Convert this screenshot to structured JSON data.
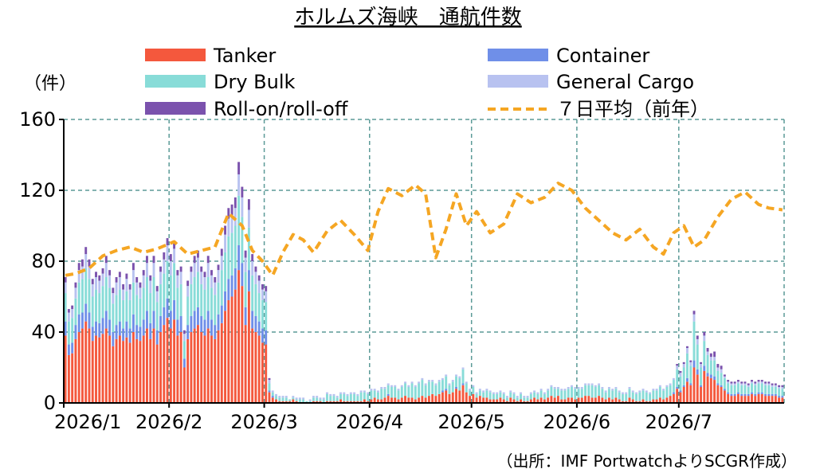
{
  "chart_data": {
    "type": "bar",
    "stacked": true,
    "title": "ホルムズ海峡　通航件数",
    "ylabel": "（件）",
    "ylim": [
      0,
      160
    ],
    "yticks": [
      0,
      40,
      80,
      120,
      160
    ],
    "xticks": [
      "2026/1",
      "2026/2",
      "2026/3",
      "2026/4",
      "2026/5",
      "2026/6",
      "2026/7"
    ],
    "grid": true,
    "legend_position": "top",
    "source": "（出所：IMF PortwatchよりSCGR作成）",
    "x_start": "2026-01-01",
    "x_end": "2026-07-31",
    "series": [
      {
        "name": "Tanker",
        "color": "#f4583d",
        "values": [
          38,
          27,
          28,
          36,
          40,
          42,
          46,
          42,
          35,
          38,
          37,
          39,
          42,
          38,
          32,
          36,
          38,
          35,
          37,
          34,
          40,
          36,
          35,
          38,
          42,
          36,
          42,
          33,
          40,
          44,
          48,
          42,
          47,
          38,
          40,
          20,
          36,
          40,
          42,
          44,
          40,
          38,
          42,
          38,
          36,
          41,
          45,
          52,
          58,
          60,
          64,
          75,
          66,
          44,
          63,
          42,
          40,
          38,
          34,
          33,
          6,
          3,
          2,
          1,
          1,
          1,
          1,
          2,
          1,
          0,
          0,
          0,
          0,
          1,
          1,
          1,
          0,
          1,
          1,
          1,
          1,
          2,
          1,
          1,
          1,
          1,
          1,
          1,
          2,
          1,
          2,
          3,
          2,
          2,
          3,
          4,
          3,
          3,
          2,
          3,
          4,
          3,
          3,
          2,
          3,
          4,
          3,
          4,
          5,
          4,
          5,
          6,
          7,
          5,
          6,
          8,
          7,
          10,
          6,
          4,
          5,
          3,
          4,
          3,
          3,
          2,
          2,
          2,
          3,
          2,
          1,
          3,
          2,
          1,
          2,
          1,
          1,
          2,
          3,
          2,
          3,
          2,
          3,
          4,
          3,
          4,
          2,
          2,
          3,
          3,
          2,
          3,
          3,
          4,
          4,
          3,
          3,
          4,
          3,
          2,
          3,
          2,
          3,
          2,
          1,
          1,
          3,
          2,
          1,
          1,
          2,
          1,
          1,
          2,
          2,
          3,
          2,
          3,
          4,
          5,
          8,
          6,
          9,
          12,
          10,
          20,
          16,
          9,
          18,
          15,
          14,
          13,
          10,
          9,
          7,
          5,
          4,
          4,
          5,
          4,
          4,
          4,
          5,
          4,
          5,
          5,
          4,
          4,
          4,
          4,
          3,
          3
        ]
      },
      {
        "name": "Container",
        "color": "#6f8fe8",
        "values": [
          8,
          6,
          6,
          8,
          10,
          9,
          10,
          9,
          8,
          8,
          8,
          9,
          10,
          9,
          8,
          8,
          8,
          7,
          9,
          8,
          10,
          8,
          8,
          9,
          10,
          9,
          10,
          8,
          9,
          10,
          11,
          10,
          11,
          9,
          9,
          5,
          8,
          9,
          10,
          10,
          9,
          9,
          10,
          9,
          8,
          9,
          10,
          11,
          12,
          12,
          12,
          14,
          13,
          10,
          12,
          10,
          9,
          8,
          8,
          8,
          1,
          1,
          0,
          0,
          0,
          0,
          0,
          0,
          0,
          0,
          0,
          0,
          0,
          0,
          0,
          0,
          0,
          0,
          0,
          0,
          0,
          0,
          0,
          0,
          0,
          0,
          0,
          0,
          0,
          0,
          0,
          0,
          0,
          0,
          0,
          1,
          0,
          0,
          0,
          0,
          0,
          0,
          0,
          0,
          0,
          0,
          0,
          0,
          0,
          0,
          0,
          1,
          1,
          0,
          0,
          1,
          0,
          1,
          0,
          0,
          0,
          0,
          0,
          0,
          0,
          0,
          0,
          0,
          0,
          0,
          0,
          0,
          0,
          0,
          0,
          0,
          0,
          0,
          0,
          0,
          0,
          0,
          0,
          0,
          0,
          0,
          0,
          0,
          0,
          0,
          0,
          0,
          0,
          0,
          0,
          0,
          0,
          0,
          0,
          0,
          0,
          0,
          0,
          0,
          0,
          0,
          0,
          0,
          0,
          0,
          0,
          0,
          0,
          0,
          0,
          0,
          0,
          0,
          0,
          1,
          1,
          1,
          1,
          2,
          1,
          4,
          3,
          1,
          3,
          2,
          2,
          2,
          1,
          1,
          1,
          1,
          1,
          1,
          1,
          1,
          1,
          1,
          1,
          1,
          1,
          1,
          1,
          1,
          1,
          1,
          1,
          1
        ]
      },
      {
        "name": "Dry Bulk",
        "color": "#88dcd8",
        "values": [
          16,
          13,
          14,
          15,
          18,
          19,
          20,
          19,
          17,
          18,
          17,
          18,
          19,
          18,
          16,
          17,
          18,
          16,
          17,
          16,
          18,
          17,
          16,
          18,
          19,
          17,
          19,
          16,
          18,
          19,
          21,
          20,
          21,
          18,
          18,
          10,
          16,
          18,
          19,
          20,
          18,
          17,
          19,
          18,
          17,
          18,
          20,
          22,
          24,
          24,
          24,
          28,
          26,
          20,
          24,
          20,
          18,
          16,
          16,
          16,
          4,
          2,
          2,
          2,
          2,
          2,
          1,
          1,
          1,
          2,
          2,
          1,
          1,
          2,
          2,
          1,
          2,
          4,
          3,
          3,
          2,
          3,
          4,
          3,
          4,
          4,
          3,
          5,
          4,
          4,
          5,
          4,
          4,
          6,
          5,
          5,
          6,
          6,
          5,
          6,
          7,
          6,
          8,
          7,
          8,
          9,
          7,
          8,
          7,
          6,
          7,
          6,
          7,
          5,
          6,
          6,
          7,
          8,
          5,
          3,
          4,
          2,
          3,
          3,
          4,
          4,
          3,
          3,
          3,
          3,
          2,
          3,
          3,
          2,
          3,
          2,
          2,
          3,
          3,
          3,
          4,
          3,
          4,
          5,
          5,
          4,
          5,
          5,
          5,
          6,
          6,
          5,
          5,
          6,
          6,
          7,
          6,
          6,
          5,
          4,
          5,
          5,
          5,
          4,
          4,
          4,
          5,
          4,
          4,
          5,
          5,
          5,
          4,
          5,
          5,
          6,
          5,
          6,
          6,
          7,
          10,
          8,
          10,
          14,
          10,
          22,
          14,
          10,
          14,
          10,
          8,
          9,
          7,
          7,
          6,
          5,
          5,
          5,
          5,
          5,
          5,
          4,
          5,
          5,
          5,
          5,
          5,
          5,
          4,
          4,
          4,
          4
        ]
      },
      {
        "name": "General Cargo",
        "color": "#b8c2f0",
        "values": [
          6,
          5,
          5,
          6,
          7,
          7,
          8,
          7,
          7,
          7,
          7,
          7,
          8,
          7,
          6,
          7,
          7,
          6,
          7,
          6,
          7,
          7,
          6,
          7,
          8,
          7,
          8,
          6,
          7,
          8,
          9,
          8,
          8,
          7,
          7,
          4,
          6,
          7,
          8,
          8,
          7,
          7,
          8,
          7,
          7,
          7,
          8,
          10,
          10,
          10,
          10,
          12,
          11,
          8,
          10,
          8,
          7,
          7,
          6,
          6,
          2,
          1,
          1,
          1,
          1,
          1,
          0,
          1,
          1,
          1,
          1,
          0,
          1,
          1,
          1,
          1,
          1,
          1,
          1,
          1,
          1,
          1,
          1,
          1,
          1,
          1,
          1,
          1,
          1,
          1,
          1,
          1,
          1,
          1,
          1,
          1,
          1,
          1,
          1,
          1,
          1,
          1,
          1,
          1,
          1,
          1,
          1,
          1,
          1,
          1,
          1,
          1,
          1,
          1,
          1,
          1,
          1,
          1,
          1,
          1,
          1,
          1,
          1,
          1,
          1,
          1,
          1,
          1,
          1,
          1,
          1,
          1,
          1,
          1,
          1,
          1,
          1,
          1,
          1,
          1,
          1,
          1,
          1,
          1,
          1,
          1,
          1,
          1,
          1,
          1,
          1,
          1,
          1,
          1,
          1,
          1,
          1,
          1,
          1,
          1,
          1,
          1,
          1,
          1,
          1,
          1,
          1,
          1,
          1,
          1,
          1,
          1,
          1,
          1,
          1,
          1,
          1,
          1,
          1,
          1,
          2,
          2,
          2,
          3,
          2,
          4,
          3,
          2,
          3,
          2,
          2,
          2,
          2,
          2,
          1,
          1,
          1,
          1,
          1,
          1,
          1,
          1,
          1,
          1,
          1,
          1,
          1,
          1,
          1,
          1,
          1,
          1
        ]
      },
      {
        "name": "Roll-on/roll-off",
        "color": "#7b52ad",
        "values": [
          3,
          2,
          2,
          3,
          4,
          4,
          4,
          4,
          3,
          3,
          3,
          3,
          4,
          3,
          3,
          3,
          3,
          3,
          3,
          3,
          4,
          3,
          3,
          3,
          4,
          3,
          4,
          3,
          3,
          4,
          4,
          4,
          4,
          3,
          3,
          2,
          3,
          3,
          4,
          4,
          3,
          3,
          4,
          3,
          3,
          3,
          4,
          5,
          6,
          6,
          6,
          7,
          6,
          4,
          6,
          4,
          3,
          3,
          3,
          3,
          1,
          0,
          0,
          0,
          0,
          0,
          0,
          0,
          0,
          0,
          0,
          0,
          0,
          0,
          0,
          0,
          0,
          0,
          0,
          0,
          0,
          0,
          0,
          0,
          0,
          0,
          0,
          0,
          0,
          0,
          0,
          0,
          0,
          0,
          0,
          0,
          0,
          0,
          0,
          0,
          0,
          0,
          0,
          0,
          0,
          0,
          0,
          0,
          0,
          0,
          0,
          0,
          0,
          0,
          0,
          0,
          0,
          0,
          0,
          0,
          0,
          0,
          0,
          0,
          0,
          0,
          0,
          0,
          0,
          0,
          0,
          0,
          0,
          0,
          0,
          0,
          0,
          0,
          0,
          0,
          0,
          0,
          0,
          0,
          0,
          0,
          0,
          0,
          0,
          0,
          0,
          0,
          0,
          0,
          0,
          0,
          0,
          0,
          0,
          0,
          0,
          0,
          0,
          0,
          0,
          0,
          0,
          0,
          0,
          0,
          0,
          0,
          0,
          0,
          0,
          0,
          0,
          0,
          0,
          0,
          1,
          1,
          1,
          1,
          1,
          2,
          2,
          1,
          2,
          2,
          2,
          3,
          2,
          2,
          1,
          1,
          1,
          1,
          1,
          1,
          1,
          1,
          1,
          1,
          1,
          1,
          1,
          1,
          1,
          1,
          1,
          1
        ]
      }
    ],
    "line": {
      "name": "７日平均（前年）",
      "color": "#f5a623",
      "x": [
        "2026-01-01",
        "2026-01-04",
        "2026-01-08",
        "2026-01-12",
        "2026-01-16",
        "2026-01-20",
        "2026-01-24",
        "2026-01-28",
        "2026-02-02",
        "2026-02-06",
        "2026-02-10",
        "2026-02-14",
        "2026-02-18",
        "2026-02-22",
        "2026-02-25",
        "2026-02-28",
        "2026-03-03",
        "2026-03-06",
        "2026-03-09",
        "2026-03-12",
        "2026-03-15",
        "2026-03-19",
        "2026-03-23",
        "2026-03-27",
        "2026-03-31",
        "2026-04-03",
        "2026-04-06",
        "2026-04-10",
        "2026-04-14",
        "2026-04-17",
        "2026-04-20",
        "2026-04-23",
        "2026-04-26",
        "2026-04-29",
        "2026-05-02",
        "2026-05-06",
        "2026-05-10",
        "2026-05-14",
        "2026-05-18",
        "2026-05-22",
        "2026-05-26",
        "2026-05-30",
        "2026-06-03",
        "2026-06-07",
        "2026-06-11",
        "2026-06-15",
        "2026-06-19",
        "2026-06-23",
        "2026-06-26",
        "2026-06-29",
        "2026-07-02",
        "2026-07-05",
        "2026-07-08",
        "2026-07-12",
        "2026-07-16",
        "2026-07-20",
        "2026-07-24",
        "2026-07-27",
        "2026-07-31"
      ],
      "values": [
        72,
        73,
        76,
        83,
        86,
        88,
        85,
        87,
        91,
        84,
        86,
        88,
        107,
        100,
        86,
        80,
        72,
        85,
        95,
        92,
        85,
        97,
        103,
        95,
        86,
        108,
        121,
        117,
        123,
        118,
        82,
        98,
        118,
        100,
        108,
        96,
        101,
        118,
        113,
        116,
        124,
        120,
        110,
        103,
        96,
        92,
        98,
        88,
        84,
        96,
        100,
        88,
        92,
        105,
        115,
        119,
        112,
        110,
        109
      ]
    }
  }
}
